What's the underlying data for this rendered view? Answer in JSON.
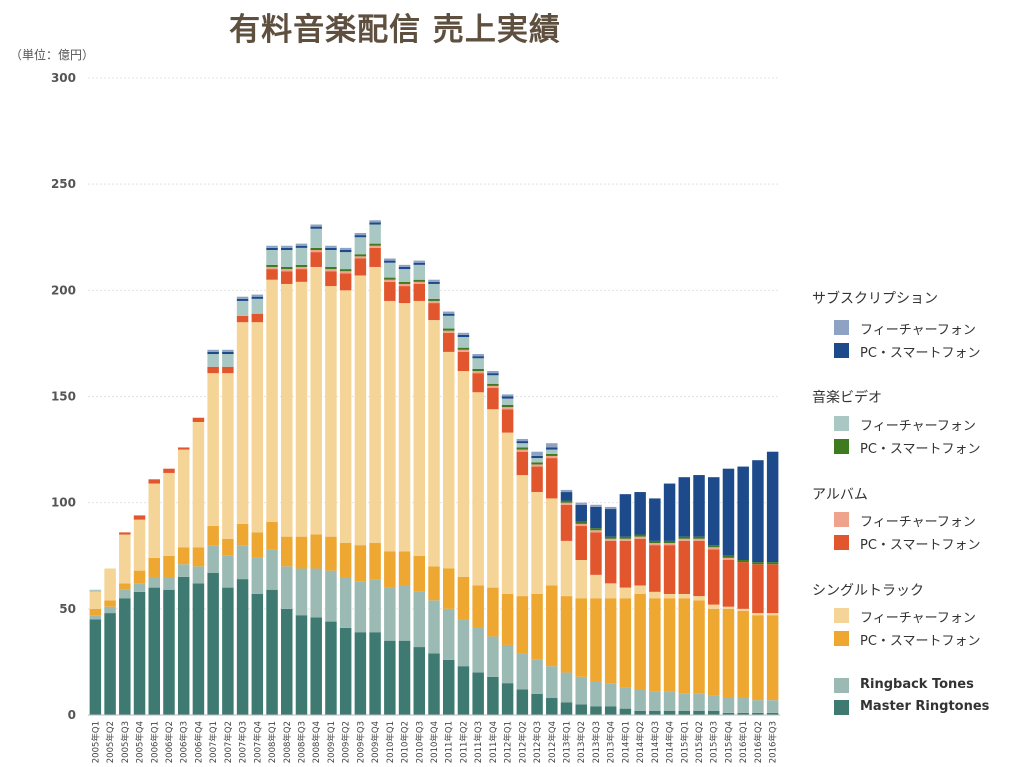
{
  "title": "有料音楽配信 売上実績",
  "unit": "（単位：億円）",
  "legend": {
    "subscription": {
      "title": "サブスクリプション",
      "items": [
        "フィーチャーフォン",
        "PC・スマートフォン"
      ]
    },
    "video": {
      "title": "音楽ビデオ",
      "items": [
        "フィーチャーフォン",
        "PC・スマートフォン"
      ]
    },
    "album": {
      "title": "アルバム",
      "items": [
        "フィーチャーフォン",
        "PC・スマートフォン"
      ]
    },
    "single": {
      "title": "シングルトラック",
      "items": [
        "フィーチャーフォン",
        "PC・スマートフォン"
      ]
    },
    "ringback": "Ringback Tones",
    "master": "Master Ringtones"
  },
  "chart_data": {
    "type": "bar",
    "stacked": true,
    "title": "有料音楽配信 売上実績",
    "ylabel": "（単位：億円）",
    "ylim": [
      0,
      300
    ],
    "yticks": [
      0,
      50,
      100,
      150,
      200,
      250,
      300
    ],
    "grid": true,
    "legend_position": "right",
    "categories": [
      "2005年Q1",
      "2005年Q2",
      "2005年Q3",
      "2005年Q4",
      "2006年Q1",
      "2006年Q2",
      "2006年Q3",
      "2006年Q4",
      "2007年Q1",
      "2007年Q2",
      "2007年Q3",
      "2007年Q4",
      "2008年Q1",
      "2008年Q2",
      "2008年Q3",
      "2008年Q4",
      "2009年Q1",
      "2009年Q2",
      "2009年Q3",
      "2009年Q4",
      "2010年Q1",
      "2010年Q2",
      "2010年Q3",
      "2010年Q4",
      "2011年Q1",
      "2011年Q2",
      "2011年Q3",
      "2011年Q4",
      "2012年Q1",
      "2012年Q2",
      "2012年Q3",
      "2012年Q4",
      "2013年Q1",
      "2013年Q2",
      "2013年Q3",
      "2013年Q4",
      "2014年Q1",
      "2014年Q2",
      "2014年Q3",
      "2014年Q4",
      "2015年Q1",
      "2015年Q2",
      "2015年Q3",
      "2015年Q4",
      "2016年Q1",
      "2016年Q2",
      "2016年Q3"
    ],
    "series": [
      {
        "name": "Master Ringtones",
        "color": "#3e7a72",
        "values": [
          45,
          48,
          55,
          58,
          60,
          59,
          65,
          62,
          67,
          60,
          64,
          57,
          59,
          50,
          47,
          46,
          44,
          41,
          39,
          39,
          35,
          35,
          32,
          29,
          26,
          23,
          20,
          18,
          15,
          12,
          10,
          8,
          6,
          5,
          4,
          4,
          3,
          2,
          2,
          2,
          2,
          2,
          2,
          1,
          1,
          1,
          1
        ]
      },
      {
        "name": "Ringback Tones",
        "color": "#9cbab4",
        "values": [
          2,
          3,
          4,
          4,
          5,
          6,
          6,
          8,
          13,
          15,
          16,
          17,
          19,
          20,
          22,
          23,
          24,
          24,
          24,
          25,
          25,
          26,
          26,
          25,
          24,
          22,
          21,
          19,
          18,
          17,
          16,
          15,
          14,
          13,
          12,
          11,
          10,
          10,
          9,
          9,
          8,
          8,
          7,
          7,
          7,
          6,
          6
        ]
      },
      {
        "name": "シングルトラック PC・スマートフォン",
        "color": "#eea731",
        "values": [
          3,
          3,
          3,
          6,
          9,
          10,
          8,
          9,
          9,
          8,
          10,
          12,
          13,
          14,
          15,
          16,
          16,
          16,
          17,
          17,
          17,
          16,
          17,
          16,
          19,
          20,
          20,
          23,
          24,
          27,
          31,
          38,
          36,
          37,
          39,
          40,
          42,
          45,
          44,
          44,
          45,
          44,
          41,
          42,
          41,
          40,
          40
        ]
      },
      {
        "name": "シングルトラック フィーチャーフォン",
        "color": "#f5d497",
        "values": [
          8,
          15,
          23,
          24,
          35,
          39,
          46,
          59,
          72,
          78,
          95,
          99,
          114,
          119,
          120,
          126,
          118,
          119,
          127,
          130,
          118,
          117,
          120,
          116,
          102,
          97,
          91,
          84,
          76,
          57,
          48,
          41,
          26,
          18,
          11,
          7,
          5,
          4,
          3,
          2,
          2,
          2,
          2,
          1,
          1,
          1,
          1
        ]
      },
      {
        "name": "アルバム PC・スマートフォン",
        "color": "#e2562e",
        "values": [
          0,
          0,
          1,
          2,
          2,
          2,
          1,
          2,
          3,
          3,
          3,
          4,
          5,
          6,
          6,
          7,
          7,
          8,
          8,
          9,
          9,
          8,
          8,
          8,
          9,
          9,
          9,
          10,
          11,
          11,
          12,
          19,
          17,
          16,
          20,
          20,
          22,
          22,
          22,
          23,
          25,
          26,
          26,
          22,
          22,
          23,
          23
        ]
      },
      {
        "name": "アルバム フィーチャーフォン",
        "color": "#efa38c",
        "values": [
          0,
          0,
          0,
          0,
          0,
          0,
          0,
          0,
          0,
          0,
          0,
          0,
          1,
          1,
          1,
          1,
          1,
          1,
          1,
          1,
          1,
          1,
          1,
          1,
          1,
          1,
          1,
          1,
          1,
          1,
          1,
          1,
          1,
          1,
          1,
          1,
          1,
          1,
          1,
          1,
          1,
          1,
          1,
          1,
          0,
          0,
          0
        ]
      },
      {
        "name": "音楽ビデオ PC・スマートフォン",
        "color": "#3f7a1e",
        "values": [
          0,
          0,
          0,
          0,
          0,
          0,
          0,
          0,
          0,
          0,
          0,
          0,
          1,
          1,
          1,
          1,
          1,
          1,
          1,
          1,
          1,
          1,
          1,
          1,
          1,
          1,
          1,
          1,
          1,
          1,
          1,
          1,
          1,
          1,
          1,
          1,
          1,
          1,
          1,
          1,
          1,
          1,
          1,
          1,
          1,
          1,
          1
        ]
      },
      {
        "name": "音楽ビデオ フィーチャーフォン",
        "color": "#a9c8c3",
        "values": [
          1,
          0,
          0,
          0,
          0,
          0,
          0,
          0,
          6,
          6,
          7,
          7,
          7,
          8,
          8,
          9,
          8,
          8,
          8,
          9,
          7,
          6,
          7,
          7,
          6,
          5,
          5,
          4,
          3,
          2,
          2,
          2,
          0,
          0,
          0,
          0,
          0,
          0,
          0,
          0,
          0,
          0,
          0,
          0,
          0,
          0,
          0
        ]
      },
      {
        "name": "サブスクリプション PC・スマートフォン",
        "color": "#1d4a8b",
        "values": [
          0,
          0,
          0,
          0,
          0,
          0,
          0,
          0,
          1,
          1,
          1,
          1,
          1,
          1,
          1,
          1,
          1,
          1,
          1,
          1,
          1,
          1,
          1,
          1,
          1,
          1,
          1,
          1,
          1,
          1,
          1,
          1,
          4,
          8,
          10,
          13,
          20,
          20,
          20,
          27,
          28,
          29,
          32,
          41,
          44,
          48,
          52
        ]
      },
      {
        "name": "サブスクリプション フィーチャーフォン",
        "color": "#8ea2c4",
        "values": [
          0,
          0,
          0,
          0,
          0,
          0,
          0,
          0,
          1,
          1,
          1,
          1,
          1,
          1,
          1,
          1,
          1,
          1,
          1,
          1,
          1,
          1,
          1,
          1,
          1,
          1,
          1,
          1,
          1,
          1,
          2,
          2,
          1,
          1,
          1,
          1,
          0,
          0,
          0,
          0,
          0,
          0,
          0,
          0,
          0,
          0,
          0
        ]
      }
    ]
  }
}
